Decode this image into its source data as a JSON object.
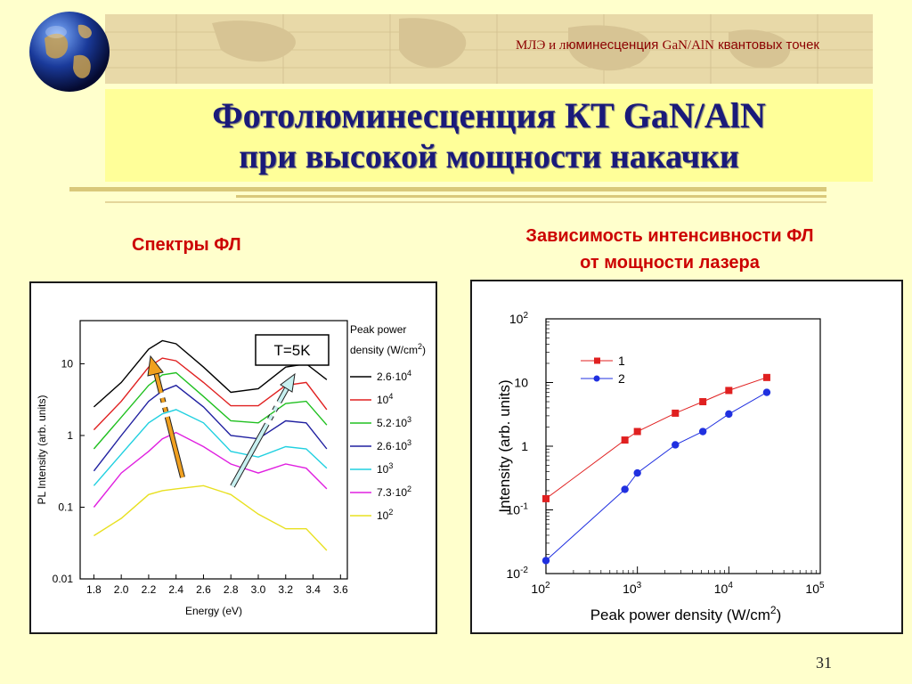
{
  "header": {
    "banner_part1": "МЛЭ и л",
    "banner_part2": "юминесценция ",
    "banner_part3": "GaN/AlN",
    "banner_part4": " квантовых точек"
  },
  "title": {
    "line1": "Фотолюминесценция КТ GaN/AlN",
    "line2": "при высокой мощности накачки"
  },
  "captions": {
    "left": "Спектры ФЛ",
    "right_line1": "Зависимость интенсивности ФЛ",
    "right_line2": "от мощности лазера"
  },
  "page_number": "31",
  "chart_data": [
    {
      "type": "line",
      "xlabel": "Energy (eV)",
      "ylabel": "PL Intensity (arb. units)",
      "xlim": [
        1.7,
        3.65
      ],
      "ylim": [
        0.01,
        40
      ],
      "yscale": "log",
      "x_ticks": [
        "1.8",
        "2.0",
        "2.2",
        "2.4",
        "2.6",
        "2.8",
        "3.0",
        "3.2",
        "3.4",
        "3.6"
      ],
      "y_ticks": [
        "0.01",
        "0.1",
        "1",
        "10"
      ],
      "annotation": "T=5K",
      "legend_title_line1": "Peak power",
      "legend_title_line2": "density (W/cm",
      "legend_title_sup": "2",
      "legend_title_end": ")",
      "legend_position": "right",
      "x": [
        1.8,
        2.0,
        2.2,
        2.3,
        2.4,
        2.6,
        2.8,
        3.0,
        3.2,
        3.35,
        3.5
      ],
      "series": [
        {
          "name": "2.6·10^4",
          "label_base": "2.6·10",
          "label_sup": "4",
          "color": "#000000",
          "values": [
            2.5,
            5.5,
            16,
            21,
            19,
            9,
            4,
            4.5,
            9,
            10,
            6
          ]
        },
        {
          "name": "10^4",
          "label_base": "10",
          "label_sup": "4",
          "color": "#e02020",
          "values": [
            1.2,
            3.0,
            9,
            12,
            11,
            5.5,
            2.6,
            2.6,
            5,
            5.5,
            2.3
          ]
        },
        {
          "name": "5.2·10^3",
          "label_base": "5.2·10",
          "label_sup": "3",
          "color": "#20c020",
          "values": [
            0.65,
            1.8,
            5,
            7,
            7.5,
            3.5,
            1.6,
            1.5,
            2.8,
            3.0,
            1.4
          ]
        },
        {
          "name": "2.6·10^3",
          "label_base": "2.6·10",
          "label_sup": "3",
          "color": "#2020a0",
          "values": [
            0.32,
            1.0,
            3.0,
            4.2,
            5.0,
            2.5,
            1.0,
            0.9,
            1.6,
            1.5,
            0.65
          ]
        },
        {
          "name": "10^3",
          "label_base": "10",
          "label_sup": "3",
          "color": "#20d0e0",
          "values": [
            0.2,
            0.55,
            1.5,
            2.0,
            2.3,
            1.5,
            0.6,
            0.5,
            0.7,
            0.65,
            0.35
          ]
        },
        {
          "name": "7.3·10^2",
          "label_base": "7.3·10",
          "label_sup": "2",
          "color": "#e020e0",
          "values": [
            0.1,
            0.3,
            0.6,
            0.9,
            1.1,
            0.7,
            0.4,
            0.3,
            0.4,
            0.35,
            0.18
          ]
        },
        {
          "name": "10^2",
          "label_base": "10",
          "label_sup": "2",
          "color": "#e8e020",
          "values": [
            0.04,
            0.07,
            0.15,
            0.17,
            0.18,
            0.2,
            0.15,
            0.08,
            0.05,
            0.05,
            0.025
          ]
        }
      ]
    },
    {
      "type": "scatter",
      "xlabel": "Peak power density (W/cm",
      "xlabel_sup": "2",
      "xlabel_end": ")",
      "ylabel": "Intensity (arb. units)",
      "xscale": "log",
      "yscale": "log",
      "xlim": [
        100,
        100000
      ],
      "ylim": [
        0.01,
        100
      ],
      "x_ticks": [
        {
          "base": "10",
          "exp": "2"
        },
        {
          "base": "10",
          "exp": "3"
        },
        {
          "base": "10",
          "exp": "4"
        },
        {
          "base": "10",
          "exp": "5"
        }
      ],
      "y_ticks": [
        {
          "base": "10",
          "exp": "-2"
        },
        {
          "base": "10",
          "exp": "-1"
        },
        {
          "base": "1",
          "exp": ""
        },
        {
          "base": "10",
          "exp": ""
        },
        {
          "base": "10",
          "exp": "2"
        }
      ],
      "legend_position": "top-left",
      "series": [
        {
          "name": "1",
          "color": "#e02020",
          "marker": "square",
          "x": [
            100,
            730,
            1000,
            2600,
            5200,
            10000,
            26000
          ],
          "values": [
            0.15,
            1.25,
            1.7,
            3.3,
            5.0,
            7.5,
            12
          ]
        },
        {
          "name": "2",
          "color": "#2030e0",
          "marker": "circle",
          "x": [
            100,
            730,
            1000,
            2600,
            5200,
            10000,
            26000
          ],
          "values": [
            0.016,
            0.21,
            0.38,
            1.05,
            1.7,
            3.2,
            7.0
          ]
        }
      ]
    }
  ]
}
